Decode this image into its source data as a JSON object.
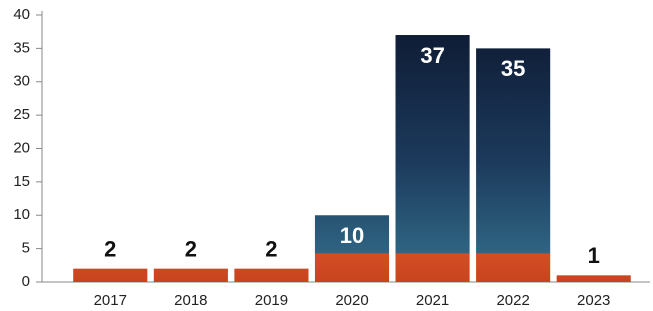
{
  "chart_data": {
    "type": "bar",
    "categories": [
      "2017",
      "2018",
      "2019",
      "2020",
      "2021",
      "2022",
      "2023"
    ],
    "values": [
      2,
      2,
      2,
      10,
      37,
      35,
      1
    ],
    "ylim": [
      0,
      40
    ],
    "yticks": [
      0,
      5,
      10,
      15,
      20,
      25,
      30,
      35,
      40
    ]
  }
}
